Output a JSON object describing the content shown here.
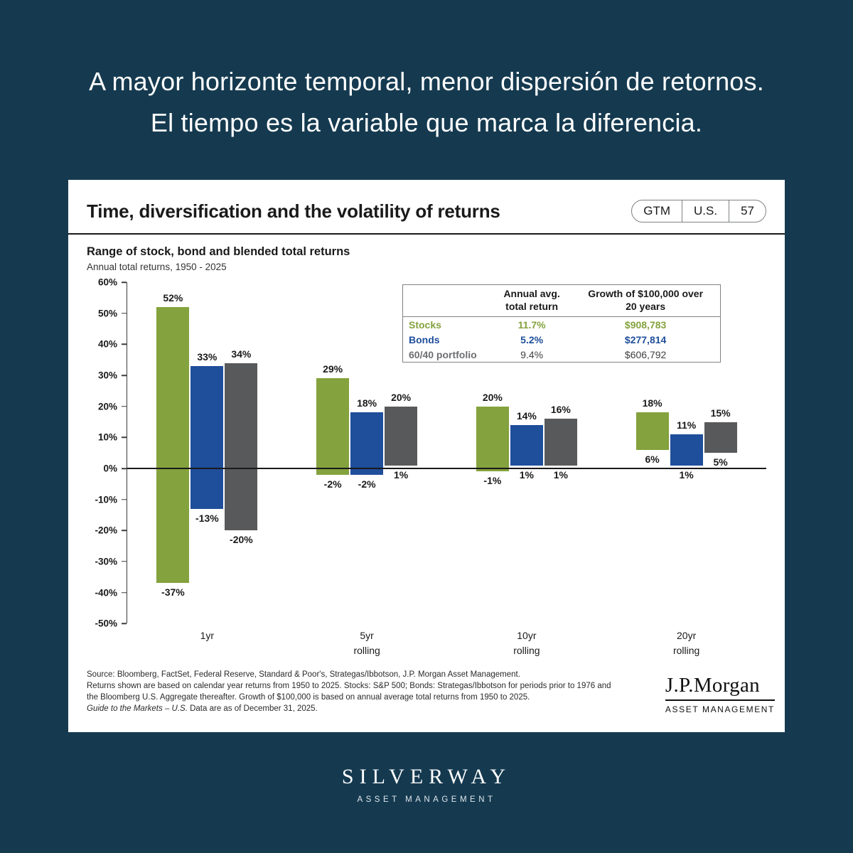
{
  "colors": {
    "background": "#153a50",
    "stocks": "#84a23d",
    "bonds": "#1f4e9a",
    "blend": "#58595b"
  },
  "headline": {
    "line1": "A mayor horizonte temporal, menor dispersión de retornos.",
    "line2": "El tiempo es la variable que marca la diferencia."
  },
  "card": {
    "title": "Time, diversification and the volatility of returns",
    "badge": {
      "gtm": "GTM",
      "region": "U.S.",
      "page": "57"
    },
    "subtitle": "Range of stock, bond and blended total returns",
    "caption": "Annual total returns, 1950 - 2025"
  },
  "chart_data": {
    "type": "bar",
    "title": "Range of stock, bond and blended total returns",
    "subtitle": "Annual total returns, 1950 - 2025",
    "ylim": [
      -50,
      60
    ],
    "yticks": [
      60,
      50,
      40,
      30,
      20,
      10,
      0,
      -10,
      -20,
      -30,
      -40,
      -50
    ],
    "grid": false,
    "legend_position": "none",
    "categories": [
      "1yr",
      "5yr rolling",
      "10yr rolling",
      "20yr rolling"
    ],
    "series": [
      {
        "name": "Stocks",
        "color": "#84a23d",
        "max": [
          52,
          29,
          20,
          18
        ],
        "min": [
          -37,
          -2,
          -1,
          6
        ]
      },
      {
        "name": "Bonds",
        "color": "#1f4e9a",
        "max": [
          33,
          18,
          14,
          11
        ],
        "min": [
          -13,
          -2,
          1,
          1
        ]
      },
      {
        "name": "60/40 portfolio",
        "color": "#58595b",
        "max": [
          34,
          20,
          16,
          15
        ],
        "min": [
          -20,
          1,
          1,
          5
        ]
      }
    ]
  },
  "stats_table": {
    "header": {
      "col_avg_line1": "Annual avg.",
      "col_avg_line2": "total return",
      "col_growth_line1": "Growth of $100,000 over",
      "col_growth_line2": "20 years"
    },
    "rows": [
      {
        "label": "Stocks",
        "avg": "11.7%",
        "growth": "$908,783",
        "label_color": "#84a23d",
        "value_color": "#84a23d",
        "bold_values": true
      },
      {
        "label": "Bonds",
        "avg": "5.2%",
        "growth": "$277,814",
        "label_color": "#1f4e9a",
        "value_color": "#1f4e9a",
        "bold_values": true
      },
      {
        "label": "60/40 portfolio",
        "avg": "9.4%",
        "growth": "$606,792",
        "label_color": "#6d6e71",
        "value_color": "#3f3f41",
        "bold_values": false
      }
    ]
  },
  "footer": {
    "source": {
      "line1": "Source: Bloomberg, FactSet, Federal Reserve, Standard & Poor's, Strategas/Ibbotson, J.P. Morgan Asset Management.",
      "line2": "Returns shown are based on calendar year returns from 1950 to 2025. Stocks: S&P 500; Bonds: Strategas/Ibbotson for periods prior to 1976 and",
      "line3": "the Bloomberg U.S. Aggregate thereafter. Growth of $100,000 is based on annual average total returns from 1950 to 2025.",
      "line4_italic": "Guide to the Markets – U.S.",
      "line4_rest": " Data are as of December 31, 2025."
    },
    "jpm_wordmark": "J.P.Morgan",
    "jpm_sub": "ASSET MANAGEMENT"
  },
  "brand": {
    "name": "SILVERWAY",
    "sub": "ASSET MANAGEMENT"
  }
}
